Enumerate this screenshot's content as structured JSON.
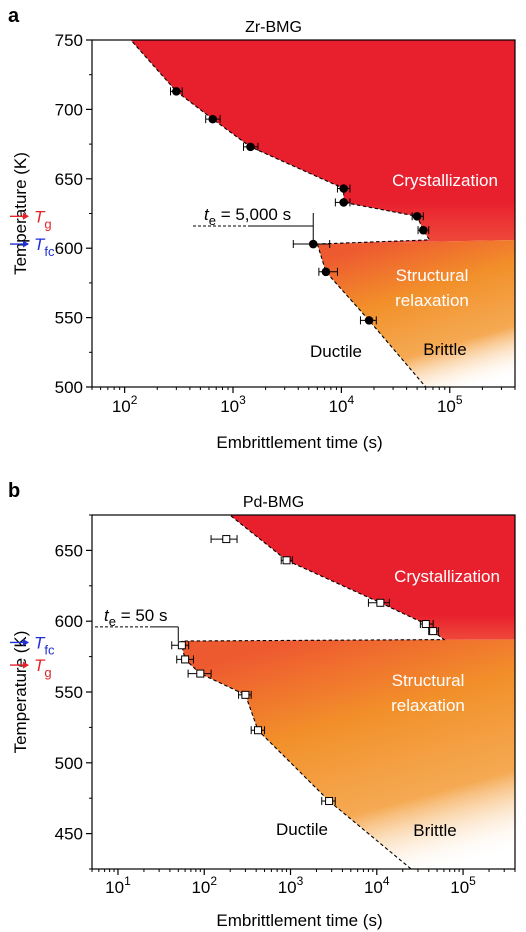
{
  "colors": {
    "crystallization": "#e8202e",
    "relaxation": "#f2902a",
    "tg": "#e5242a",
    "tfc": "#1f2fd6",
    "ink": "#000000",
    "region_text": "#ffffff"
  },
  "chart_data": [
    {
      "type": "scatter",
      "panel": "a",
      "title": "Zr-BMG",
      "xlabel": "Embrittlement time (s)",
      "ylabel": "Temperature (K)",
      "xscale": "log",
      "xlim": [
        50,
        400000
      ],
      "ylim": [
        500,
        750
      ],
      "x_ticks": [
        {
          "v": 100,
          "e": "2"
        },
        {
          "v": 1000,
          "e": "3"
        },
        {
          "v": 10000,
          "e": "4"
        },
        {
          "v": 100000,
          "e": "5"
        }
      ],
      "y_ticks": [
        500,
        550,
        600,
        650,
        700,
        750
      ],
      "marker": "filled-circle",
      "points": [
        {
          "x": 300,
          "y": 713,
          "err": [
            265,
            340
          ]
        },
        {
          "x": 650,
          "y": 693,
          "err": [
            560,
            760
          ]
        },
        {
          "x": 1450,
          "y": 673,
          "err": [
            1250,
            1700
          ]
        },
        {
          "x": 10500,
          "y": 643,
          "err": [
            9200,
            12000
          ]
        },
        {
          "x": 10500,
          "y": 633,
          "err": [
            8800,
            12000
          ]
        },
        {
          "x": 50000,
          "y": 623,
          "err": [
            45000,
            57000
          ]
        },
        {
          "x": 57000,
          "y": 613,
          "err": [
            51000,
            64000
          ]
        },
        {
          "x": 5500,
          "y": 603,
          "err": [
            3600,
            7800
          ]
        },
        {
          "x": 7200,
          "y": 583,
          "err": [
            6200,
            9200
          ]
        },
        {
          "x": 18000,
          "y": 548,
          "err": [
            15000,
            21000
          ]
        }
      ],
      "upper_boundary": [
        [
          100,
          755
        ],
        [
          300,
          713
        ],
        [
          650,
          693
        ],
        [
          1450,
          673
        ],
        [
          10500,
          643
        ],
        [
          10500,
          633
        ],
        [
          50000,
          623
        ],
        [
          57000,
          613
        ],
        [
          65000,
          606
        ],
        [
          6000,
          603
        ]
      ],
      "lower_boundary": [
        [
          6000,
          603
        ],
        [
          7200,
          583
        ],
        [
          18000,
          548
        ],
        [
          60000,
          500
        ]
      ],
      "relaxation_top": 606,
      "markers": [
        {
          "sub": "g",
          "label": "T",
          "y": 623,
          "color_key": "tg"
        },
        {
          "sub": "fc",
          "label": "T",
          "y": 603,
          "color_key": "tfc"
        }
      ],
      "te": {
        "prefix": "t",
        "sub": "e",
        "text": " = 5,000 s",
        "x": 5500,
        "y": 616
      },
      "regions": {
        "crystallization": "Crystallization",
        "relaxation": [
          "Structural",
          "relaxation"
        ],
        "ductile": "Ductile",
        "brittle": "Brittle"
      }
    },
    {
      "type": "scatter",
      "panel": "b",
      "title": "Pd-BMG",
      "xlabel": "Embrittlement time (s)",
      "ylabel": "Temperature (K)",
      "xscale": "log",
      "xlim": [
        5,
        400000
      ],
      "ylim": [
        425,
        675
      ],
      "x_ticks": [
        {
          "v": 10,
          "e": "1"
        },
        {
          "v": 100,
          "e": "2"
        },
        {
          "v": 1000,
          "e": "3"
        },
        {
          "v": 10000,
          "e": "4"
        },
        {
          "v": 100000,
          "e": "5"
        }
      ],
      "y_ticks": [
        450,
        500,
        550,
        600,
        650
      ],
      "marker": "open-square",
      "points": [
        {
          "x": 180,
          "y": 658,
          "err": [
            120,
            240
          ]
        },
        {
          "x": 900,
          "y": 643,
          "err": [
            780,
            1050
          ]
        },
        {
          "x": 11000,
          "y": 613,
          "err": [
            8000,
            14000
          ]
        },
        {
          "x": 37000,
          "y": 598,
          "err": [
            32000,
            45000
          ]
        },
        {
          "x": 45000,
          "y": 593,
          "err": [
            40000,
            52000
          ]
        },
        {
          "x": 55,
          "y": 583,
          "err": [
            42,
            66
          ]
        },
        {
          "x": 60,
          "y": 573,
          "err": [
            48,
            75
          ]
        },
        {
          "x": 90,
          "y": 563,
          "err": [
            65,
            120
          ]
        },
        {
          "x": 300,
          "y": 548,
          "err": [
            250,
            350
          ]
        },
        {
          "x": 420,
          "y": 523,
          "err": [
            350,
            500
          ]
        },
        {
          "x": 2800,
          "y": 473,
          "err": [
            2300,
            3300
          ]
        }
      ],
      "upper_boundary": [
        [
          180,
          677
        ],
        [
          900,
          643
        ],
        [
          11000,
          613
        ],
        [
          37000,
          598
        ],
        [
          45000,
          593
        ],
        [
          60000,
          587
        ],
        [
          55,
          586
        ]
      ],
      "lower_boundary": [
        [
          55,
          586
        ],
        [
          55,
          583
        ],
        [
          60,
          573
        ],
        [
          90,
          563
        ],
        [
          300,
          548
        ],
        [
          420,
          523
        ],
        [
          2800,
          473
        ],
        [
          25000,
          425
        ]
      ],
      "relaxation_top": 587,
      "markers": [
        {
          "sub": "fc",
          "label": "T",
          "y": 585,
          "color_key": "tfc"
        },
        {
          "sub": "g",
          "label": "T",
          "y": 569,
          "color_key": "tg"
        }
      ],
      "te": {
        "prefix": "t",
        "sub": "e",
        "text": " = 50 s",
        "x": 50,
        "y": 596
      },
      "regions": {
        "crystallization": "Crystallization",
        "relaxation": [
          "Structural",
          "relaxation"
        ],
        "ductile": "Ductile",
        "brittle": "Brittle"
      }
    }
  ]
}
